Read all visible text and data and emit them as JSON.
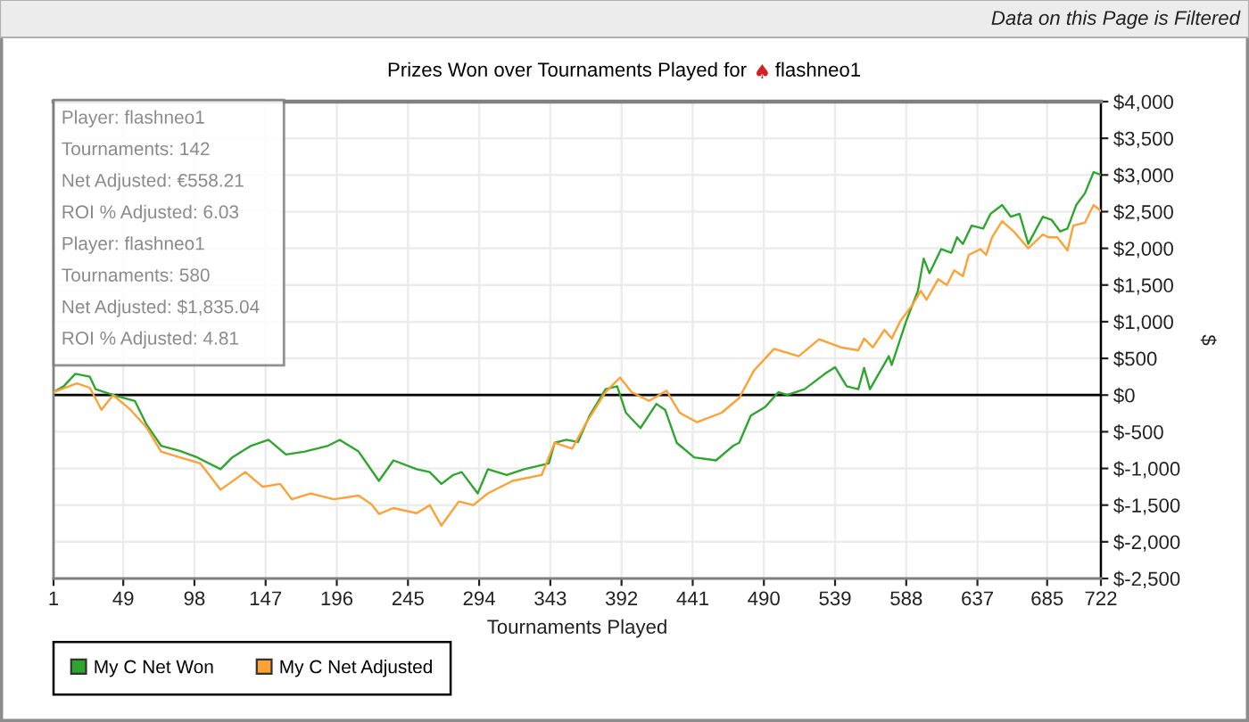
{
  "chart_data": {
    "type": "line",
    "title": "Prizes Won over Tournaments Played for flashneo1",
    "xlabel": "Tournaments Played",
    "ylabel": "$",
    "xlim": [
      1,
      722
    ],
    "xticks": [
      1,
      49,
      98,
      147,
      196,
      245,
      294,
      343,
      392,
      441,
      490,
      539,
      588,
      637,
      685,
      722
    ],
    "ylim": [
      -2500,
      4000
    ],
    "yticks": [
      {
        "value": -2500,
        "label": "$-2,500"
      },
      {
        "value": -2000,
        "label": "$-2,000"
      },
      {
        "value": -1500,
        "label": "$-1,500"
      },
      {
        "value": -1000,
        "label": "$-1,000"
      },
      {
        "value": -500,
        "label": "$-500"
      },
      {
        "value": 0,
        "label": "$0"
      },
      {
        "value": 500,
        "label": "$500"
      },
      {
        "value": 1000,
        "label": "$1,000"
      },
      {
        "value": 1500,
        "label": "$1,500"
      },
      {
        "value": 2000,
        "label": "$2,000"
      },
      {
        "value": 2500,
        "label": "$2,500"
      },
      {
        "value": 3000,
        "label": "$3,000"
      },
      {
        "value": 3500,
        "label": "$3,500"
      },
      {
        "value": 4000,
        "label": "$4,000"
      }
    ],
    "grid": true,
    "legend": "bottom left",
    "line_style": "solid",
    "ref_lines": [
      {
        "axis": "y",
        "value": 0,
        "color": "#000000"
      }
    ],
    "annotations": [
      "Data on this Page is Filtered",
      "Player: flashneo1",
      "Tournaments: 142",
      "Net Adjusted: €558.21",
      "ROI % Adjusted: 6.03",
      "Player: flashneo1",
      "Tournaments: 580",
      "Net Adjusted: $1,835.04",
      "ROI % Adjusted: 4.81"
    ],
    "series": [
      {
        "name": "My C Net Won",
        "color": "#2ca62c",
        "x": [
          1,
          8,
          16,
          26,
          30,
          42,
          57,
          65,
          75,
          88,
          100,
          116,
          124,
          137,
          149,
          161,
          174,
          190,
          198,
          211,
          225,
          235,
          251,
          260,
          268,
          276,
          282,
          293,
          300,
          313,
          325,
          342,
          346,
          354,
          362,
          370,
          381,
          389,
          395,
          405,
          416,
          422,
          430,
          442,
          457,
          469,
          473,
          481,
          491,
          500,
          506,
          518,
          532,
          539,
          547,
          555,
          559,
          563,
          576,
          578,
          588,
          596,
          600,
          604,
          612,
          619,
          623,
          627,
          633,
          641,
          646,
          654,
          660,
          666,
          672,
          682,
          688,
          694,
          699,
          705,
          711,
          717,
          722
        ],
        "values": [
          40,
          120,
          290,
          250,
          80,
          0,
          -80,
          -400,
          -690,
          -760,
          -850,
          -1010,
          -850,
          -690,
          -610,
          -810,
          -770,
          -690,
          -610,
          -770,
          -1170,
          -890,
          -1010,
          -1050,
          -1210,
          -1090,
          -1050,
          -1340,
          -1010,
          -1090,
          -1010,
          -930,
          -650,
          -610,
          -640,
          -280,
          80,
          120,
          -240,
          -450,
          -120,
          -200,
          -650,
          -850,
          -890,
          -690,
          -650,
          -280,
          -160,
          40,
          0,
          80,
          290,
          380,
          120,
          80,
          370,
          80,
          530,
          410,
          1010,
          1420,
          1860,
          1660,
          1990,
          1940,
          2150,
          2060,
          2310,
          2270,
          2470,
          2590,
          2430,
          2470,
          2060,
          2430,
          2390,
          2230,
          2270,
          2590,
          2750,
          3040,
          3000
        ]
      },
      {
        "name": "My C Net Adjusted",
        "color": "#ffa033",
        "x": [
          1,
          17,
          26,
          34,
          42,
          54,
          65,
          75,
          88,
          102,
          116,
          133,
          145,
          157,
          165,
          178,
          194,
          211,
          220,
          225,
          235,
          251,
          260,
          268,
          280,
          290,
          300,
          317,
          337,
          346,
          358,
          368,
          381,
          391,
          399,
          411,
          423,
          432,
          444,
          461,
          473,
          483,
          497,
          514,
          528,
          543,
          555,
          559,
          565,
          573,
          578,
          584,
          592,
          598,
          602,
          610,
          616,
          621,
          627,
          631,
          639,
          643,
          647,
          654,
          662,
          672,
          682,
          686,
          692,
          699,
          703,
          711,
          717,
          722
        ],
        "values": [
          40,
          160,
          100,
          -200,
          0,
          -200,
          -440,
          -770,
          -850,
          -930,
          -1290,
          -1050,
          -1250,
          -1210,
          -1420,
          -1340,
          -1420,
          -1370,
          -1490,
          -1620,
          -1540,
          -1610,
          -1500,
          -1780,
          -1450,
          -1500,
          -1340,
          -1170,
          -1090,
          -650,
          -730,
          -370,
          40,
          240,
          40,
          -80,
          60,
          -240,
          -370,
          -240,
          -40,
          330,
          630,
          530,
          760,
          650,
          610,
          770,
          650,
          890,
          770,
          1010,
          1220,
          1420,
          1300,
          1580,
          1500,
          1700,
          1620,
          1910,
          1990,
          1910,
          2150,
          2370,
          2230,
          2000,
          2190,
          2150,
          2150,
          1970,
          2310,
          2350,
          2590,
          2510
        ]
      }
    ]
  }
}
